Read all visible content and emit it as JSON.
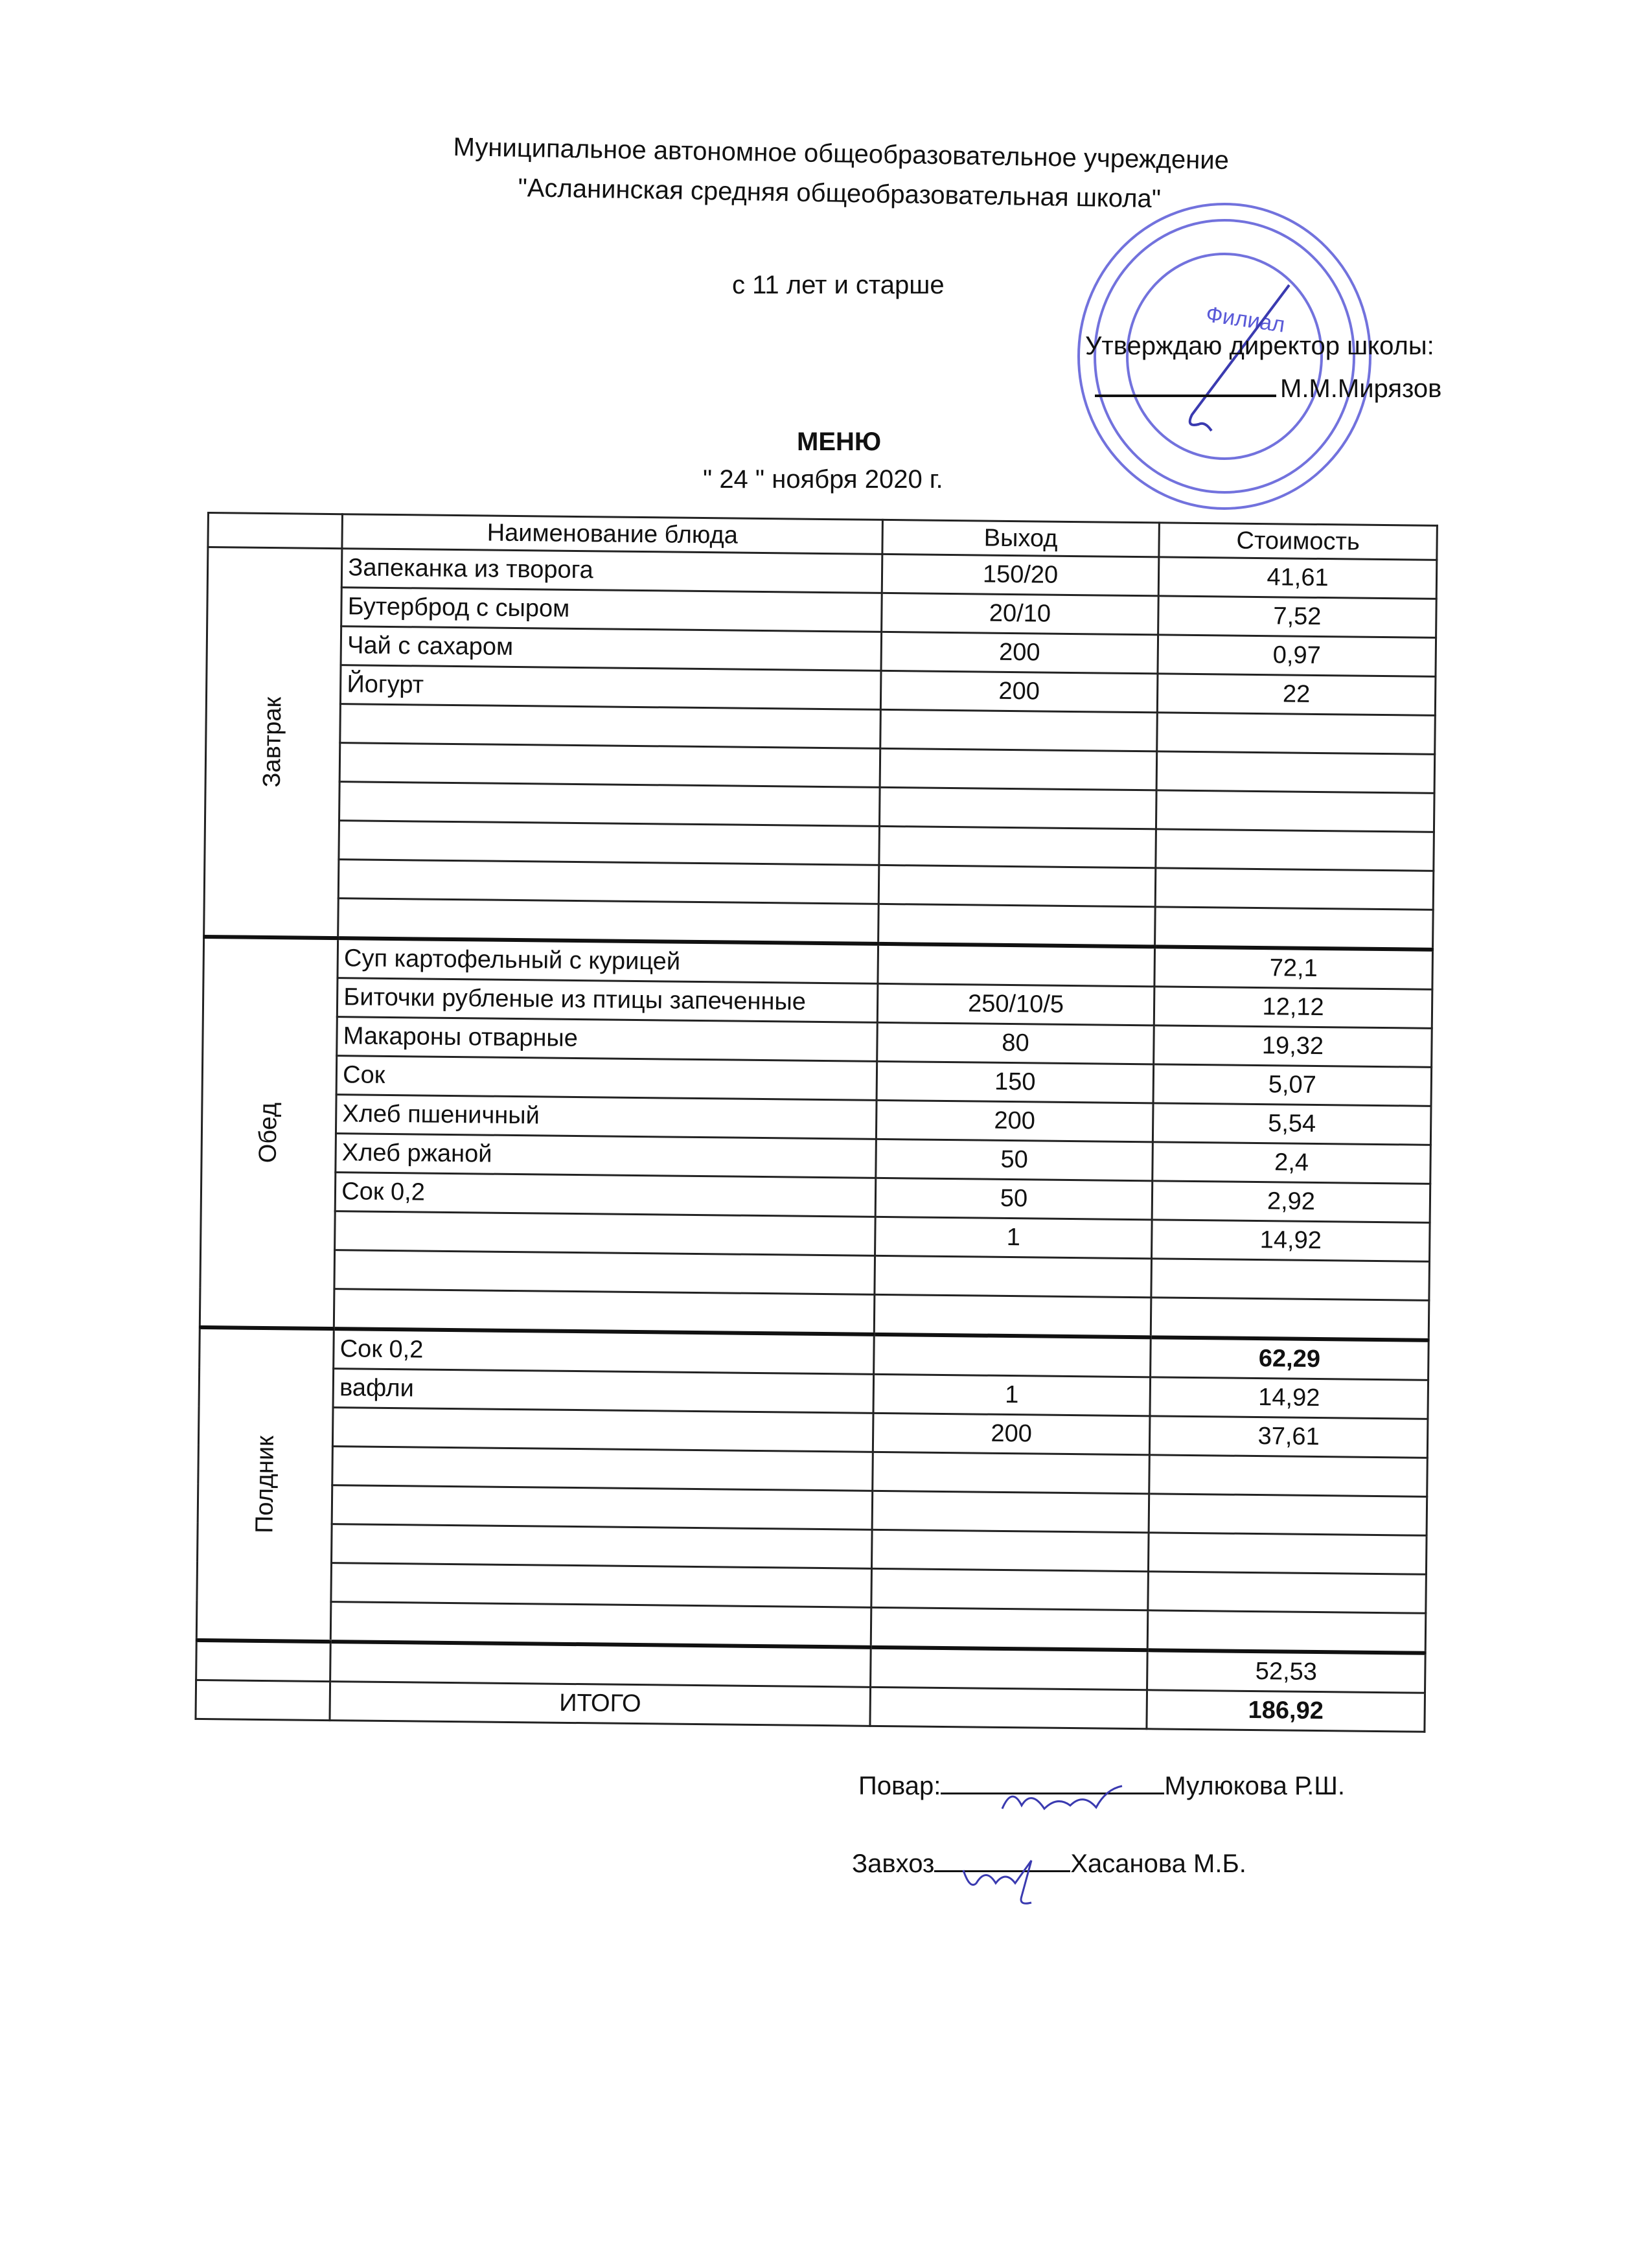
{
  "header": {
    "org_line1": "Муниципальное автономное общеобразовательное учреждение",
    "org_line2": "\"Асланинская средняя общеобразовательная школа\"",
    "age_group": "с 11 лет и старше",
    "approve_label": "Утверждаю директор школы:",
    "director_name": "М.М.Мирязов",
    "menu_title": "МЕНЮ",
    "menu_date": "\" 24 \" ноября   2020 г."
  },
  "stamp": {
    "text": "Филиал",
    "color": "#5a5ad8"
  },
  "table": {
    "columns": [
      "Наименование блюда",
      "Выход",
      "Стоимость"
    ],
    "sections": [
      {
        "label": "Завтрак",
        "rows": [
          {
            "name": "Запеканка из творога",
            "yield": "150/20",
            "cost": "41,61"
          },
          {
            "name": "Бутерброд с сыром",
            "yield": "20/10",
            "cost": "7,52"
          },
          {
            "name": "Чай с сахаром",
            "yield": "200",
            "cost": "0,97"
          },
          {
            "name": "Йогурт",
            "yield": "200",
            "cost": "22"
          },
          {
            "name": "",
            "yield": "",
            "cost": ""
          },
          {
            "name": "",
            "yield": "",
            "cost": ""
          },
          {
            "name": "",
            "yield": "",
            "cost": ""
          },
          {
            "name": "",
            "yield": "",
            "cost": ""
          },
          {
            "name": "",
            "yield": "",
            "cost": ""
          },
          {
            "name": "",
            "yield": "",
            "cost": ""
          }
        ]
      },
      {
        "label": "Обед",
        "rows": [
          {
            "name": "Суп картофельный с курицей",
            "yield": "",
            "cost": "72,1"
          },
          {
            "name": "Биточки рубленые из птицы запеченные",
            "yield": "250/10/5",
            "cost": "12,12"
          },
          {
            "name": "Макароны отварные",
            "yield": "80",
            "cost": "19,32"
          },
          {
            "name": "Сок",
            "yield": "150",
            "cost": "5,07"
          },
          {
            "name": "Хлеб пшеничный",
            "yield": "200",
            "cost": "5,54"
          },
          {
            "name": "Хлеб ржаной",
            "yield": "50",
            "cost": "2,4"
          },
          {
            "name": "Сок 0,2",
            "yield": "50",
            "cost": "2,92"
          },
          {
            "name": "",
            "yield": "1",
            "cost": "14,92"
          },
          {
            "name": "",
            "yield": "",
            "cost": ""
          },
          {
            "name": "",
            "yield": "",
            "cost": ""
          }
        ]
      },
      {
        "label": "Полдник",
        "rows": [
          {
            "name": "Сок 0,2",
            "yield": "",
            "cost": "62,29"
          },
          {
            "name": "вафли",
            "yield": "1",
            "cost": "14,92"
          },
          {
            "name": "",
            "yield": "200",
            "cost": "37,61"
          },
          {
            "name": "",
            "yield": "",
            "cost": ""
          },
          {
            "name": "",
            "yield": "",
            "cost": ""
          },
          {
            "name": "",
            "yield": "",
            "cost": ""
          },
          {
            "name": "",
            "yield": "",
            "cost": ""
          },
          {
            "name": "",
            "yield": "",
            "cost": ""
          }
        ]
      }
    ],
    "total": {
      "subtotal_cost": "52,53",
      "label": "ИТОГО",
      "total_cost": "186,92"
    }
  },
  "signatures": {
    "cook_label": "Повар:",
    "cook_name": "Мулюкова Р.Ш.",
    "keeper_label": "Завхоз",
    "keeper_name": "Хасанова М.Б."
  }
}
